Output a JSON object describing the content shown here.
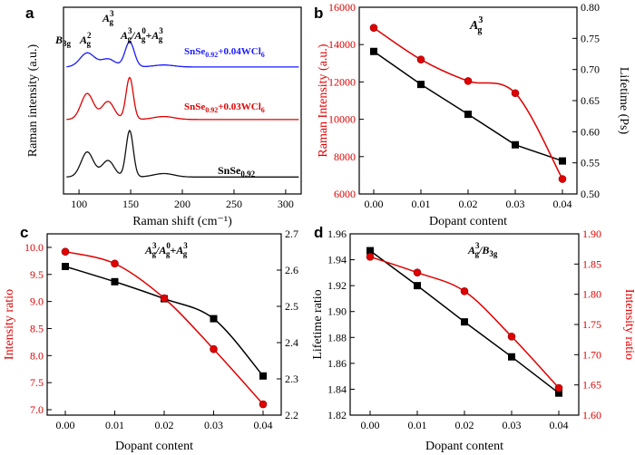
{
  "chart_data": [
    {
      "panel": "a",
      "type": "line",
      "xlabel": "Raman shift (cm⁻¹)",
      "ylabel": "Raman intensity (a.u.)",
      "xlim": [
        85,
        315
      ],
      "xticks": [
        100,
        150,
        200,
        250,
        300
      ],
      "peak_labels": [
        "B3g",
        "Ag2",
        "Ag3",
        "Ag3/Ag0+Ag3"
      ],
      "series": [
        {
          "name": "SnSe0.92+0.04WCl6",
          "color": "#1a1aff",
          "offset": 2.2,
          "peaks": [
            {
              "x": 108,
              "h": 0.28,
              "w": 7
            },
            {
              "x": 128,
              "h": 0.16,
              "w": 7
            },
            {
              "x": 149,
              "h": 0.5,
              "w": 4.5
            },
            {
              "x": 182,
              "h": 0.04,
              "w": 10
            }
          ]
        },
        {
          "name": "SnSe0.92+0.03WCl6",
          "color": "#e00000",
          "offset": 1.15,
          "peaks": [
            {
              "x": 108,
              "h": 0.52,
              "w": 6
            },
            {
              "x": 128,
              "h": 0.36,
              "w": 6
            },
            {
              "x": 149,
              "h": 0.84,
              "w": 3.5
            },
            {
              "x": 182,
              "h": 0.06,
              "w": 10
            }
          ]
        },
        {
          "name": "SnSe0.92",
          "color": "#111111",
          "offset": 0.0,
          "peaks": [
            {
              "x": 108,
              "h": 0.5,
              "w": 6
            },
            {
              "x": 128,
              "h": 0.33,
              "w": 6
            },
            {
              "x": 149,
              "h": 0.93,
              "w": 3.5
            },
            {
              "x": 182,
              "h": 0.07,
              "w": 10
            }
          ]
        }
      ]
    },
    {
      "panel": "b",
      "type": "line",
      "title": "Ag3",
      "xlabel": "Dopant content",
      "ylabel_left": "Raman Intensity (a.u.)",
      "ylabel_right": "Lifetime (Ps)",
      "x": [
        0.0,
        0.01,
        0.02,
        0.03,
        0.04
      ],
      "xticklabels": [
        "0.00",
        "0.01",
        "0.02",
        "0.03",
        "0.04"
      ],
      "ylim_left": [
        6000,
        16000
      ],
      "yticks_left": [
        "6000",
        "8000",
        "10000",
        "12000",
        "14000",
        "16000"
      ],
      "ylim_right": [
        0.5,
        0.8
      ],
      "yticks_right": [
        "0.50",
        "0.55",
        "0.60",
        "0.65",
        "0.70",
        "0.75",
        "0.80"
      ],
      "series": [
        {
          "axis": "right",
          "color": "#000000",
          "marker": "square",
          "values": [
            0.729,
            0.676,
            0.628,
            0.579,
            0.553
          ]
        },
        {
          "axis": "left",
          "color": "#e00000",
          "marker": "circle",
          "values": [
            14900,
            13200,
            12050,
            11400,
            6800
          ]
        }
      ]
    },
    {
      "panel": "c",
      "type": "line",
      "title": "Ag3/Ag0+Ag3",
      "xlabel": "Dopant content",
      "ylabel_left": "Intensity ratio",
      "x": [
        0.0,
        0.01,
        0.02,
        0.03,
        0.04
      ],
      "xticklabels": [
        "0.00",
        "0.01",
        "0.02",
        "0.03",
        "0.04"
      ],
      "ylim_left": [
        6.9,
        10.25
      ],
      "yticks_left": [
        "7.0",
        "7.5",
        "8.0",
        "8.5",
        "9.0",
        "9.5",
        "10.0"
      ],
      "ylim_right": [
        2.2,
        2.7
      ],
      "yticks_right": [
        "2.2",
        "2.3",
        "2.4",
        "2.5",
        "2.6",
        "2.7"
      ],
      "series": [
        {
          "axis": "right",
          "color": "#000000",
          "marker": "square",
          "values": [
            2.61,
            2.568,
            2.521,
            2.466,
            2.308
          ]
        },
        {
          "axis": "left",
          "color": "#e00000",
          "marker": "circle",
          "values": [
            9.92,
            9.7,
            9.06,
            8.12,
            7.1
          ]
        }
      ]
    },
    {
      "panel": "d",
      "type": "line",
      "title": "Ag3/B3g",
      "xlabel": "Dopant content",
      "ylabel_left": "Lifetime ratio",
      "ylabel_right": "Intensity ratio",
      "x": [
        0.0,
        0.01,
        0.02,
        0.03,
        0.04
      ],
      "xticklabels": [
        "0.00",
        "0.01",
        "0.02",
        "0.03",
        "0.04"
      ],
      "ylim_left": [
        1.82,
        1.96
      ],
      "yticks_left": [
        "1.82",
        "1.84",
        "1.86",
        "1.88",
        "1.90",
        "1.92",
        "1.94",
        "1.96"
      ],
      "ylim_right": [
        1.6,
        1.9
      ],
      "yticks_right": [
        "1.60",
        "1.65",
        "1.70",
        "1.75",
        "1.80",
        "1.85",
        "1.90"
      ],
      "series": [
        {
          "axis": "left",
          "color": "#000000",
          "marker": "square",
          "values": [
            1.947,
            1.92,
            1.892,
            1.865,
            1.837
          ]
        },
        {
          "axis": "right",
          "color": "#e00000",
          "marker": "circle",
          "values": [
            1.862,
            1.836,
            1.805,
            1.73,
            1.645
          ]
        }
      ]
    }
  ]
}
